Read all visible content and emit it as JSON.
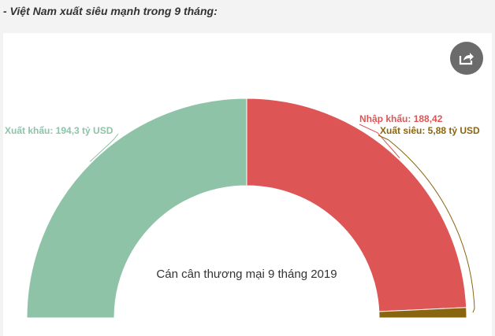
{
  "heading": "- Việt Nam xuất siêu mạnh trong 9 tháng:",
  "share_icon": "share-icon",
  "chart_data": {
    "type": "pie",
    "subtype": "semi-donut",
    "title": "",
    "center_label": "Cán cân thương mại 9 tháng 2019",
    "slices": [
      {
        "name": "Xuất khẩu",
        "value": 194.3,
        "label": "Xuất khẩu: 194,3 tỷ USD",
        "color": "#8fc3a8"
      },
      {
        "name": "Nhập khẩu",
        "value": 188.42,
        "label": "Nhập khẩu: 188,42",
        "color": "#de5556"
      },
      {
        "name": "Xuất siêu",
        "value": 5.88,
        "label": "Xuất siêu: 5,88 tỷ USD",
        "color": "#8a6510"
      }
    ]
  }
}
